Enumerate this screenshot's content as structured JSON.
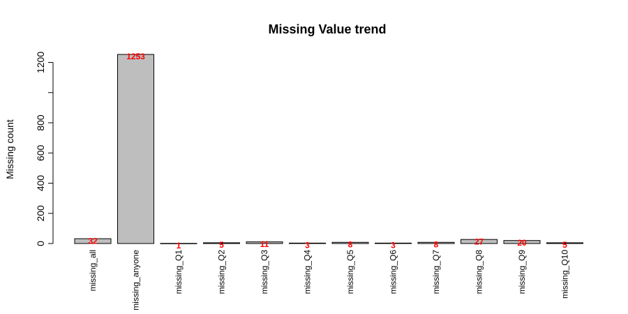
{
  "chart_data": {
    "type": "bar",
    "title": "Missing Value trend",
    "xlabel": "",
    "ylabel": "Missing count",
    "categories": [
      "missing_all",
      "missing_anyone",
      "missing_Q1",
      "missing_Q2",
      "missing_Q3",
      "missing_Q4",
      "missing_Q5",
      "missing_Q6",
      "missing_Q7",
      "missing_Q8",
      "missing_Q9",
      "missing_Q10"
    ],
    "values": [
      32,
      1253,
      1,
      5,
      11,
      3,
      8,
      3,
      8,
      27,
      20,
      5
    ],
    "data_labels": [
      "32",
      "1253",
      "1",
      "5",
      "11",
      "3",
      "8",
      "3",
      "8",
      "27",
      "20",
      "5"
    ],
    "ylim": [
      0,
      1253
    ],
    "yticks": [
      0,
      200,
      400,
      600,
      800,
      1000,
      1200
    ],
    "ytick_labels": [
      "0",
      "200",
      "400",
      "600",
      "800",
      "",
      "1200"
    ],
    "grid": false,
    "colors": {
      "bar_fill": "#bebebe",
      "bar_stroke": "#000000",
      "data_label": "#ff0000"
    }
  }
}
